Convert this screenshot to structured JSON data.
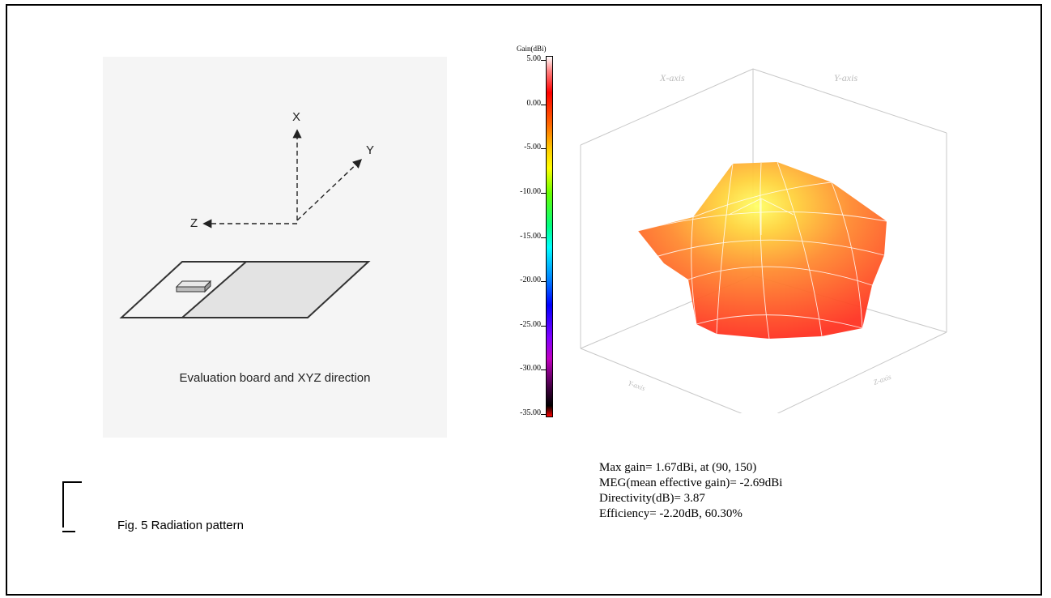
{
  "board": {
    "axis_x": "X",
    "axis_y": "Y",
    "axis_z": "Z",
    "caption": "Evaluation board and XYZ direction"
  },
  "figure": {
    "caption": "Fig. 5  Radiation pattern"
  },
  "colorbar": {
    "title": "Gain(dBi)",
    "ticks": [
      "5.00",
      "0.00",
      "-5.00",
      "-10.00",
      "-15.00",
      "-20.00",
      "-25.00",
      "-30.00",
      "-35.00"
    ]
  },
  "plot": {
    "x_axis_label": "X-axis",
    "y_axis_label": "Y-axis",
    "bottom_left_label": "Y-axis",
    "bottom_right_label": "Z-axis"
  },
  "stats": {
    "max_gain": "Max gain= 1.67dBi, at (90, 150)",
    "meg": "MEG(mean effective gain)= -2.69dBi",
    "directivity": "Directivity(dB)= 3.87",
    "efficiency": "Efficiency= -2.20dB, 60.30%"
  },
  "colors": {
    "gain_high": "#ffff66",
    "gain_mid": "#ff9933",
    "gain_low": "#ff3322"
  }
}
